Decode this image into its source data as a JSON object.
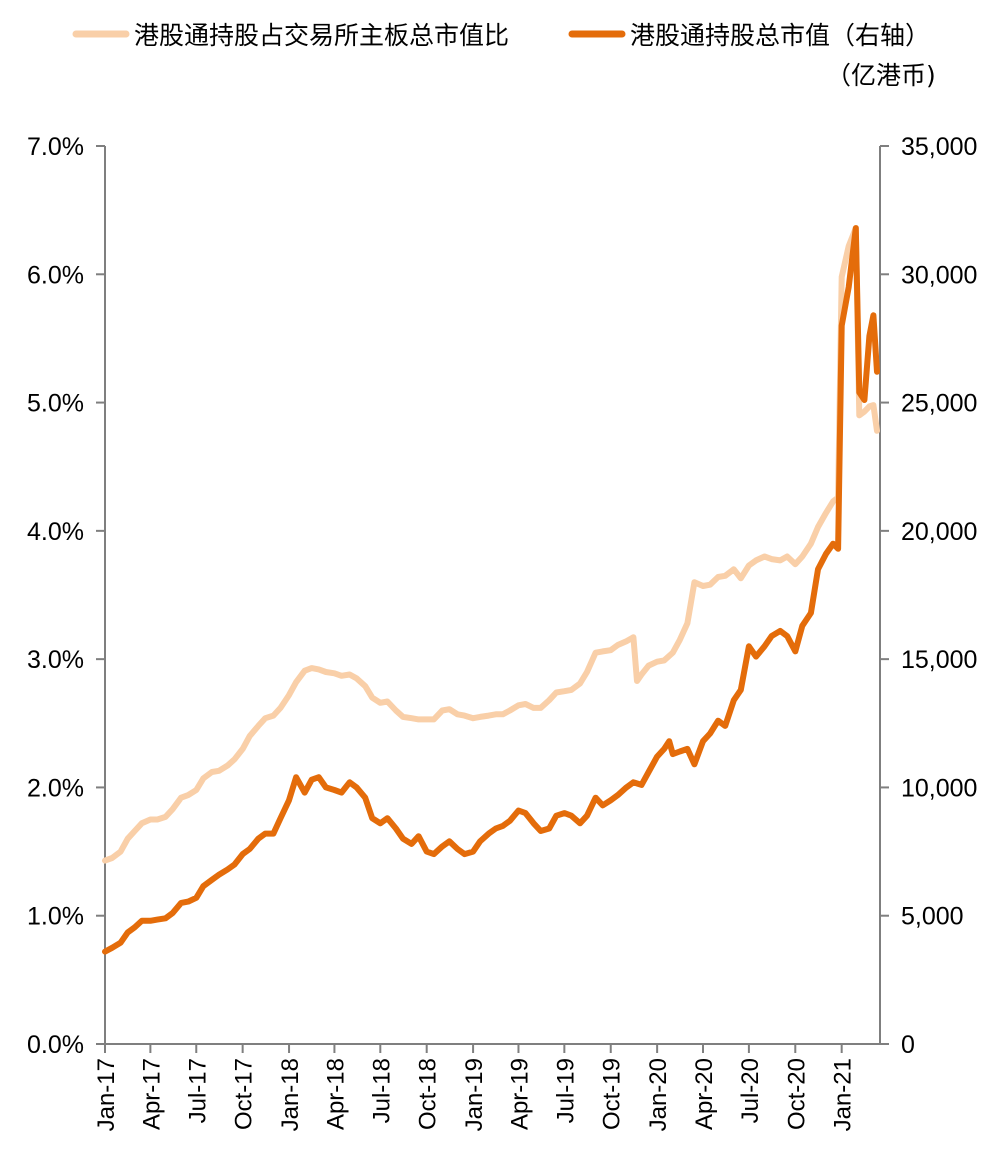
{
  "chart_data": {
    "type": "line",
    "title": "",
    "legend": {
      "placement": "top",
      "entries": [
        {
          "label": "港股通持股占交易所主板总市值比",
          "series": "ratio"
        },
        {
          "label": "港股通持股总市值（右轴）",
          "series": "value"
        }
      ],
      "unit_note": "（亿港币)"
    },
    "x_tick_labels": [
      "Jan-17",
      "Apr-17",
      "Jul-17",
      "Oct-17",
      "Jan-18",
      "Apr-18",
      "Jul-18",
      "Oct-18",
      "Jan-19",
      "Apr-19",
      "Jul-19",
      "Oct-19",
      "Jan-20",
      "Apr-20",
      "Jul-20",
      "Oct-20",
      "Jan-21"
    ],
    "x_range": [
      "2017-01",
      "2021-03"
    ],
    "y_left": {
      "ylim": [
        0,
        0.07
      ],
      "tick_labels": [
        "0.0%",
        "1.0%",
        "2.0%",
        "3.0%",
        "4.0%",
        "5.0%",
        "6.0%",
        "7.0%"
      ]
    },
    "y_right": {
      "ylim": [
        0,
        35000
      ],
      "tick_labels": [
        "0",
        "5,000",
        "10,000",
        "15,000",
        "20,000",
        "25,000",
        "30,000",
        "35,000"
      ]
    },
    "grid": false,
    "colors": {
      "ratio": "#F9CFA8",
      "value": "#E46C0A",
      "axis": "#7F7F7F"
    },
    "series": [
      {
        "name": "港股通持股占交易所主板总市值比",
        "axis": "left",
        "points": [
          [
            "2017-01-01",
            0.0143
          ],
          [
            "2017-01-15",
            0.0145
          ],
          [
            "2017-02-01",
            0.015
          ],
          [
            "2017-02-15",
            0.016
          ],
          [
            "2017-03-01",
            0.0166
          ],
          [
            "2017-03-15",
            0.0172
          ],
          [
            "2017-04-01",
            0.0175
          ],
          [
            "2017-04-15",
            0.0175
          ],
          [
            "2017-05-01",
            0.0177
          ],
          [
            "2017-05-15",
            0.0183
          ],
          [
            "2017-06-01",
            0.0192
          ],
          [
            "2017-06-15",
            0.0194
          ],
          [
            "2017-07-01",
            0.0198
          ],
          [
            "2017-07-15",
            0.0207
          ],
          [
            "2017-08-01",
            0.0212
          ],
          [
            "2017-08-15",
            0.0213
          ],
          [
            "2017-09-01",
            0.0217
          ],
          [
            "2017-09-15",
            0.0222
          ],
          [
            "2017-10-01",
            0.023
          ],
          [
            "2017-10-15",
            0.024
          ],
          [
            "2017-11-01",
            0.0248
          ],
          [
            "2017-11-15",
            0.0254
          ],
          [
            "2017-12-01",
            0.0256
          ],
          [
            "2017-12-15",
            0.0262
          ],
          [
            "2018-01-01",
            0.0272
          ],
          [
            "2018-01-15",
            0.0282
          ],
          [
            "2018-02-01",
            0.0291
          ],
          [
            "2018-02-15",
            0.0293
          ],
          [
            "2018-03-01",
            0.0292
          ],
          [
            "2018-03-15",
            0.029
          ],
          [
            "2018-04-01",
            0.0289
          ],
          [
            "2018-04-15",
            0.0287
          ],
          [
            "2018-05-01",
            0.0288
          ],
          [
            "2018-05-15",
            0.0285
          ],
          [
            "2018-06-01",
            0.0279
          ],
          [
            "2018-06-15",
            0.027
          ],
          [
            "2018-07-01",
            0.0266
          ],
          [
            "2018-07-15",
            0.0267
          ],
          [
            "2018-08-01",
            0.026
          ],
          [
            "2018-08-15",
            0.0255
          ],
          [
            "2018-09-01",
            0.0254
          ],
          [
            "2018-09-15",
            0.0253
          ],
          [
            "2018-10-01",
            0.0253
          ],
          [
            "2018-10-15",
            0.0253
          ],
          [
            "2018-11-01",
            0.026
          ],
          [
            "2018-11-15",
            0.0261
          ],
          [
            "2018-12-01",
            0.0257
          ],
          [
            "2018-12-15",
            0.0256
          ],
          [
            "2019-01-01",
            0.0254
          ],
          [
            "2019-01-15",
            0.0255
          ],
          [
            "2019-02-01",
            0.0256
          ],
          [
            "2019-02-15",
            0.0257
          ],
          [
            "2019-03-01",
            0.0257
          ],
          [
            "2019-03-15",
            0.026
          ],
          [
            "2019-04-01",
            0.0264
          ],
          [
            "2019-04-15",
            0.0265
          ],
          [
            "2019-05-01",
            0.0262
          ],
          [
            "2019-05-15",
            0.0262
          ],
          [
            "2019-06-01",
            0.0268
          ],
          [
            "2019-06-15",
            0.0274
          ],
          [
            "2019-07-01",
            0.0275
          ],
          [
            "2019-07-15",
            0.0276
          ],
          [
            "2019-08-01",
            0.0281
          ],
          [
            "2019-08-15",
            0.029
          ],
          [
            "2019-09-01",
            0.0305
          ],
          [
            "2019-09-15",
            0.0306
          ],
          [
            "2019-10-01",
            0.0307
          ],
          [
            "2019-10-15",
            0.0311
          ],
          [
            "2019-11-01",
            0.0314
          ],
          [
            "2019-11-15",
            0.0317
          ],
          [
            "2019-11-22",
            0.0283
          ],
          [
            "2019-12-01",
            0.0288
          ],
          [
            "2019-12-15",
            0.0295
          ],
          [
            "2020-01-01",
            0.0298
          ],
          [
            "2020-01-15",
            0.0299
          ],
          [
            "2020-02-01",
            0.0305
          ],
          [
            "2020-02-15",
            0.0315
          ],
          [
            "2020-03-01",
            0.0328
          ],
          [
            "2020-03-15",
            0.036
          ],
          [
            "2020-04-01",
            0.0357
          ],
          [
            "2020-04-15",
            0.0358
          ],
          [
            "2020-05-01",
            0.0364
          ],
          [
            "2020-05-15",
            0.0365
          ],
          [
            "2020-06-01",
            0.037
          ],
          [
            "2020-06-15",
            0.0363
          ],
          [
            "2020-07-01",
            0.0373
          ],
          [
            "2020-07-15",
            0.0377
          ],
          [
            "2020-08-01",
            0.038
          ],
          [
            "2020-08-15",
            0.0378
          ],
          [
            "2020-09-01",
            0.0377
          ],
          [
            "2020-09-15",
            0.038
          ],
          [
            "2020-10-01",
            0.0374
          ],
          [
            "2020-10-15",
            0.038
          ],
          [
            "2020-11-01",
            0.039
          ],
          [
            "2020-11-15",
            0.0403
          ],
          [
            "2020-12-01",
            0.0414
          ],
          [
            "2020-12-15",
            0.0423
          ],
          [
            "2020-12-25",
            0.0426
          ],
          [
            "2021-01-01",
            0.0598
          ],
          [
            "2021-01-15",
            0.0622
          ],
          [
            "2021-01-29",
            0.0636
          ],
          [
            "2021-02-05",
            0.049
          ],
          [
            "2021-02-15",
            0.0493
          ],
          [
            "2021-02-25",
            0.0497
          ],
          [
            "2021-03-05",
            0.0498
          ],
          [
            "2021-03-12",
            0.0478
          ]
        ]
      },
      {
        "name": "港股通持股总市值（右轴）",
        "axis": "right",
        "points": [
          [
            "2017-01-01",
            3600
          ],
          [
            "2017-01-15",
            3750
          ],
          [
            "2017-02-01",
            3950
          ],
          [
            "2017-02-15",
            4350
          ],
          [
            "2017-03-01",
            4550
          ],
          [
            "2017-03-15",
            4800
          ],
          [
            "2017-04-01",
            4800
          ],
          [
            "2017-04-15",
            4850
          ],
          [
            "2017-05-01",
            4900
          ],
          [
            "2017-05-15",
            5100
          ],
          [
            "2017-06-01",
            5500
          ],
          [
            "2017-06-15",
            5550
          ],
          [
            "2017-07-01",
            5700
          ],
          [
            "2017-07-15",
            6150
          ],
          [
            "2017-08-01",
            6400
          ],
          [
            "2017-08-15",
            6600
          ],
          [
            "2017-09-01",
            6800
          ],
          [
            "2017-09-15",
            7000
          ],
          [
            "2017-10-01",
            7400
          ],
          [
            "2017-10-15",
            7600
          ],
          [
            "2017-11-01",
            8000
          ],
          [
            "2017-11-15",
            8200
          ],
          [
            "2017-12-01",
            8200
          ],
          [
            "2017-12-15",
            8800
          ],
          [
            "2018-01-01",
            9500
          ],
          [
            "2018-01-15",
            10400
          ],
          [
            "2018-02-01",
            9800
          ],
          [
            "2018-02-15",
            10300
          ],
          [
            "2018-03-01",
            10400
          ],
          [
            "2018-03-15",
            10000
          ],
          [
            "2018-04-01",
            9900
          ],
          [
            "2018-04-15",
            9800
          ],
          [
            "2018-05-01",
            10200
          ],
          [
            "2018-05-15",
            10000
          ],
          [
            "2018-06-01",
            9600
          ],
          [
            "2018-06-15",
            8800
          ],
          [
            "2018-07-01",
            8600
          ],
          [
            "2018-07-15",
            8800
          ],
          [
            "2018-08-01",
            8400
          ],
          [
            "2018-08-15",
            8000
          ],
          [
            "2018-09-01",
            7800
          ],
          [
            "2018-09-15",
            8100
          ],
          [
            "2018-10-01",
            7500
          ],
          [
            "2018-10-15",
            7400
          ],
          [
            "2018-11-01",
            7700
          ],
          [
            "2018-11-15",
            7900
          ],
          [
            "2018-12-01",
            7600
          ],
          [
            "2018-12-15",
            7400
          ],
          [
            "2019-01-01",
            7500
          ],
          [
            "2019-01-15",
            7900
          ],
          [
            "2019-02-01",
            8200
          ],
          [
            "2019-02-15",
            8400
          ],
          [
            "2019-03-01",
            8500
          ],
          [
            "2019-03-15",
            8700
          ],
          [
            "2019-04-01",
            9100
          ],
          [
            "2019-04-15",
            9000
          ],
          [
            "2019-05-01",
            8600
          ],
          [
            "2019-05-15",
            8300
          ],
          [
            "2019-06-01",
            8400
          ],
          [
            "2019-06-15",
            8900
          ],
          [
            "2019-07-01",
            9000
          ],
          [
            "2019-07-15",
            8900
          ],
          [
            "2019-08-01",
            8600
          ],
          [
            "2019-08-15",
            8900
          ],
          [
            "2019-09-01",
            9600
          ],
          [
            "2019-09-15",
            9300
          ],
          [
            "2019-10-01",
            9500
          ],
          [
            "2019-10-15",
            9700
          ],
          [
            "2019-11-01",
            10000
          ],
          [
            "2019-11-15",
            10200
          ],
          [
            "2019-12-01",
            10100
          ],
          [
            "2019-12-15",
            10600
          ],
          [
            "2020-01-01",
            11200
          ],
          [
            "2020-01-15",
            11500
          ],
          [
            "2020-01-25",
            11800
          ],
          [
            "2020-02-01",
            11300
          ],
          [
            "2020-02-15",
            11400
          ],
          [
            "2020-03-01",
            11500
          ],
          [
            "2020-03-15",
            10900
          ],
          [
            "2020-04-01",
            11800
          ],
          [
            "2020-04-15",
            12100
          ],
          [
            "2020-05-01",
            12600
          ],
          [
            "2020-05-15",
            12400
          ],
          [
            "2020-06-01",
            13400
          ],
          [
            "2020-06-15",
            13800
          ],
          [
            "2020-07-01",
            15500
          ],
          [
            "2020-07-15",
            15100
          ],
          [
            "2020-08-01",
            15500
          ],
          [
            "2020-08-15",
            15900
          ],
          [
            "2020-09-01",
            16100
          ],
          [
            "2020-09-15",
            15900
          ],
          [
            "2020-10-01",
            15300
          ],
          [
            "2020-10-15",
            16300
          ],
          [
            "2020-11-01",
            16800
          ],
          [
            "2020-11-15",
            18500
          ],
          [
            "2020-12-01",
            19100
          ],
          [
            "2020-12-15",
            19500
          ],
          [
            "2020-12-25",
            19300
          ],
          [
            "2021-01-01",
            28000
          ],
          [
            "2021-01-15",
            29500
          ],
          [
            "2021-01-29",
            31800
          ],
          [
            "2021-02-05",
            25400
          ],
          [
            "2021-02-15",
            25100
          ],
          [
            "2021-02-25",
            27600
          ],
          [
            "2021-03-05",
            28400
          ],
          [
            "2021-03-12",
            26200
          ]
        ]
      }
    ]
  }
}
